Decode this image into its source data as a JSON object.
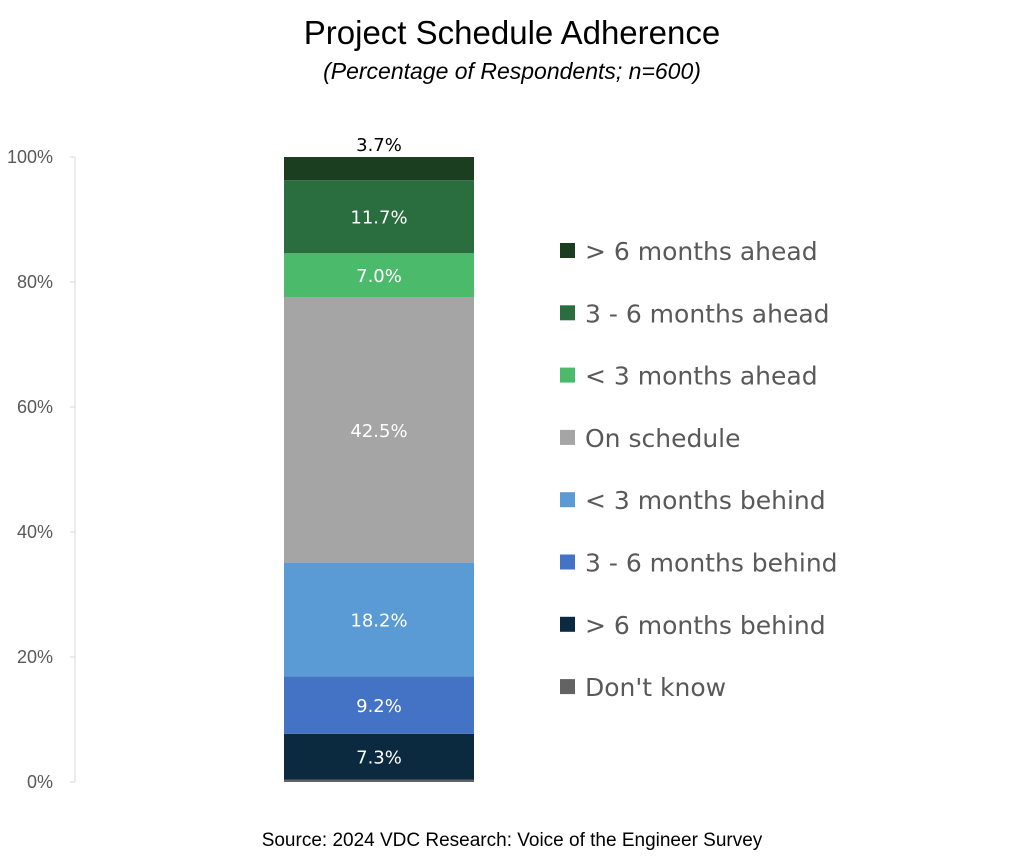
{
  "chart_data": {
    "type": "bar",
    "stacked": true,
    "title": "Project Schedule Adherence",
    "subtitle": "(Percentage of Respondents; n=600)",
    "source": "Source: 2024 VDC Research: Voice of the Engineer Survey",
    "ylim": [
      0,
      100
    ],
    "yticks": [
      "0%",
      "20%",
      "40%",
      "60%",
      "80%",
      "100%"
    ],
    "legend_position": "right",
    "grid": false,
    "series": [
      {
        "name": "Don't know",
        "value": 0.4,
        "color": "#636363",
        "label": "",
        "label_color": "#ffffff"
      },
      {
        "name": "> 6 months behind",
        "value": 7.3,
        "color": "#0b2a3f",
        "label": "7.3%",
        "label_color": "#ffffff"
      },
      {
        "name": "3 - 6 months behind",
        "value": 9.2,
        "color": "#4472c4",
        "label": "9.2%",
        "label_color": "#ffffff"
      },
      {
        "name": "< 3 months behind",
        "value": 18.2,
        "color": "#5b9bd5",
        "label": "18.2%",
        "label_color": "#ffffff"
      },
      {
        "name": "On schedule",
        "value": 42.5,
        "color": "#a5a5a5",
        "label": "42.5%",
        "label_color": "#ffffff"
      },
      {
        "name": "< 3 months ahead",
        "value": 7.0,
        "color": "#4cba6b",
        "label": "7.0%",
        "label_color": "#ffffff"
      },
      {
        "name": "3 - 6 months ahead",
        "value": 11.7,
        "color": "#2a6e3f",
        "label": "11.7%",
        "label_color": "#ffffff"
      },
      {
        "name": "> 6 months ahead",
        "value": 3.7,
        "color": "#1b3e20",
        "label": "3.7%",
        "label_color": "#000000"
      }
    ]
  }
}
